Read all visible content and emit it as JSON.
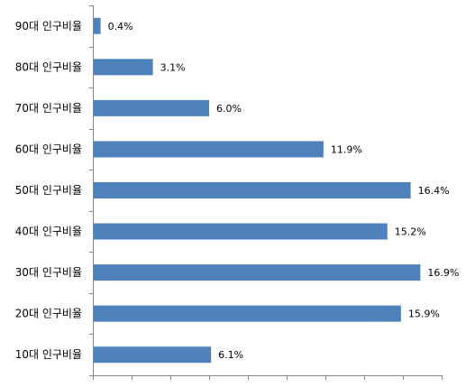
{
  "chart_data": {
    "type": "bar",
    "orientation": "horizontal",
    "categories": [
      "90대 인구비율",
      "80대 인구비율",
      "70대 인구비율",
      "60대 인구비율",
      "50대 인구비율",
      "40대 인구비율",
      "30대 인구비율",
      "20대 인구비율",
      "10대 인구비율"
    ],
    "values": [
      0.4,
      3.1,
      6.0,
      11.9,
      16.4,
      15.2,
      16.9,
      15.9,
      6.1
    ],
    "value_labels": [
      "0.4%",
      "3.1%",
      "6.0%",
      "11.9%",
      "16.4%",
      "15.2%",
      "16.9%",
      "15.9%",
      "6.1%"
    ],
    "title": "",
    "xlabel": "",
    "ylabel": "",
    "xlim": [
      0,
      18
    ],
    "grid": false,
    "legend": "none",
    "bar_color": "#4f81bd",
    "axis_color": "#868686"
  }
}
